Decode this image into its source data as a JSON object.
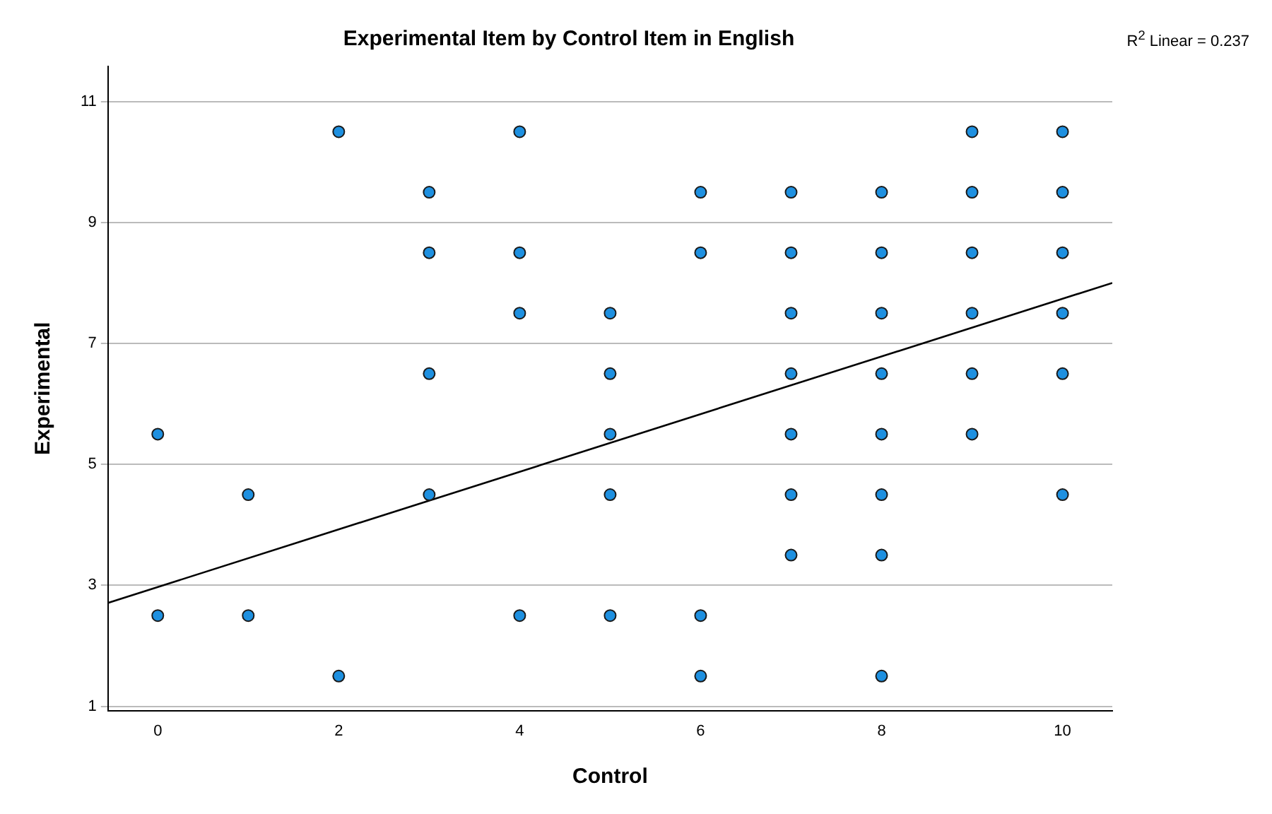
{
  "chart_data": {
    "type": "scatter",
    "title": "Experimental Item by Control Item in English",
    "xlabel": "Control",
    "ylabel": "Experimental",
    "annotations": [
      "R$^{2}$ Linear = 0.237"
    ],
    "xlim": [
      -0.55,
      10.55
    ],
    "ylim": [
      0.93,
      11.58
    ],
    "xticks": [
      0,
      2,
      4,
      6,
      8,
      10
    ],
    "yticks": [
      1,
      3,
      5,
      7,
      9,
      11
    ],
    "grid": "y",
    "legend": false,
    "marker": "circle",
    "series": [
      {
        "type": "scatter",
        "color": "#1e90e0",
        "x": [
          0,
          0,
          1,
          1,
          2,
          2,
          3,
          3,
          3,
          3,
          4,
          4,
          4,
          4,
          5,
          5,
          5,
          5,
          5,
          6,
          6,
          6,
          6,
          7,
          7,
          7,
          7,
          7,
          7,
          7,
          8,
          8,
          8,
          8,
          8,
          8,
          8,
          8,
          9,
          9,
          9,
          9,
          9,
          9,
          10,
          10,
          10,
          10,
          10,
          10
        ],
        "values": [
          5.5,
          2.5,
          4.5,
          2.5,
          10.5,
          1.5,
          9.5,
          8.5,
          6.5,
          4.5,
          10.5,
          8.5,
          7.5,
          2.5,
          7.5,
          6.5,
          5.5,
          4.5,
          2.5,
          9.5,
          8.5,
          2.5,
          1.5,
          9.5,
          8.5,
          7.5,
          6.5,
          5.5,
          4.5,
          3.5,
          9.5,
          8.5,
          7.5,
          6.5,
          5.5,
          4.5,
          3.5,
          1.5,
          10.5,
          9.5,
          8.5,
          7.5,
          6.5,
          5.5,
          10.5,
          9.5,
          8.5,
          7.5,
          6.5,
          4.5
        ]
      },
      {
        "type": "line",
        "color": "#000000",
        "marker": "none",
        "x": [
          -0.55,
          10.55
        ],
        "values": [
          2.71,
          8.0
        ]
      }
    ]
  }
}
